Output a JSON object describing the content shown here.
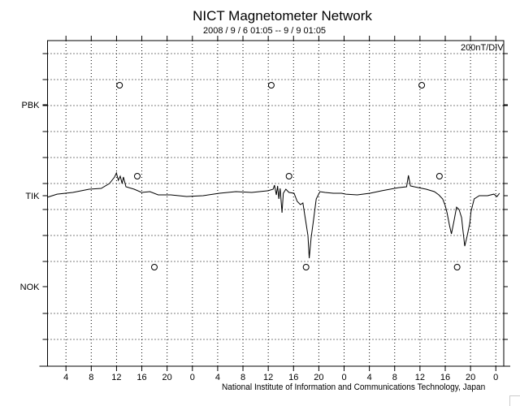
{
  "chart_data": {
    "type": "line",
    "title": "NICT Magnetometer Network",
    "subtitle": "2008 / 9 / 6  01:05 -- 9 / 9  01:05",
    "scale_label": "200nT/DIV",
    "nT_per_div": 200,
    "x_range_hours": [
      0,
      72
    ],
    "x_tick_labels": [
      "4",
      "8",
      "12",
      "16",
      "20",
      "0",
      "4",
      "8",
      "12",
      "16",
      "20",
      "0",
      "4",
      "8",
      "12",
      "16",
      "20",
      "0"
    ],
    "stations": [
      {
        "name": "PBK",
        "markers_hours": [
          11.4,
          35.4,
          59.2
        ]
      },
      {
        "name": "TIK",
        "markers_hours": [
          14.2,
          38.2,
          62.0
        ]
      },
      {
        "name": "NOK",
        "markers_hours": [
          16.9,
          40.9,
          64.8
        ]
      }
    ],
    "series": [
      {
        "name": "TIK",
        "hours": [
          0,
          1.5,
          4.0,
          6.6,
          8.5,
          9.8,
          10.6,
          10.9,
          11.2,
          11.5,
          11.8,
          12.0,
          12.4,
          13.7,
          14.9,
          16.2,
          17.5,
          19.5,
          22.0,
          24.6,
          27.2,
          29.8,
          32.3,
          34.9,
          35.7,
          35.9,
          36.2,
          36.4,
          36.6,
          36.8,
          37.1,
          37.3,
          37.7,
          38.2,
          39.0,
          39.5,
          40.0,
          40.4,
          40.8,
          41.2,
          41.4,
          41.7,
          42.1,
          42.5,
          43.1,
          43.9,
          45.2,
          46.5,
          47.2,
          49.0,
          51.0,
          52.9,
          55.5,
          56.8,
          57.1,
          57.4,
          58.7,
          59.9,
          61.2,
          61.9,
          62.5,
          62.9,
          63.2,
          63.6,
          63.9,
          64.3,
          64.7,
          65.1,
          65.5,
          65.7,
          66.0,
          66.4,
          66.8,
          67.0,
          67.5,
          68.3,
          69.6,
          70.6,
          71.1,
          71.5
        ],
        "values_nT": [
          -12,
          12,
          25,
          50,
          56,
          94,
          144,
          175,
          119,
          150,
          94,
          144,
          69,
          50,
          25,
          31,
          6,
          6,
          -6,
          0,
          19,
          31,
          25,
          38,
          50,
          81,
          6,
          75,
          -25,
          56,
          -131,
          19,
          50,
          25,
          19,
          -44,
          -69,
          -56,
          -181,
          -306,
          -481,
          -325,
          -181,
          -25,
          31,
          25,
          19,
          19,
          12,
          6,
          19,
          38,
          62,
          69,
          156,
          75,
          62,
          50,
          31,
          6,
          -25,
          -75,
          -131,
          -231,
          -294,
          -194,
          -88,
          -106,
          -169,
          -256,
          -388,
          -306,
          -212,
          -119,
          -25,
          0,
          0,
          12,
          -6,
          19
        ]
      }
    ],
    "grid": true,
    "footer": "National Institute of Information and Communications Technology, Japan"
  }
}
